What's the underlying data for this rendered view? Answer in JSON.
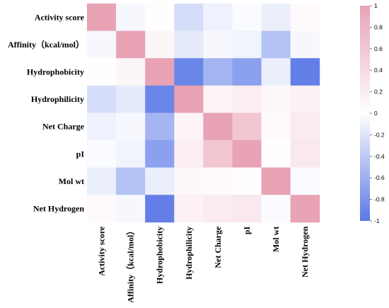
{
  "chart_data": {
    "type": "heatmap",
    "title": "",
    "labels": [
      "Activity score",
      "Affinity（kcal/mol）",
      "Hydrophobicity",
      "Hydrophilicity",
      "Net Charge",
      "pI",
      "Mol wt",
      "Net Hydrogen"
    ],
    "matrix": [
      [
        1.0,
        -0.05,
        0.02,
        -0.25,
        -0.1,
        -0.03,
        -0.12,
        0.05
      ],
      [
        -0.05,
        1.0,
        0.1,
        -0.15,
        -0.05,
        -0.08,
        -0.45,
        -0.05
      ],
      [
        0.02,
        0.1,
        1.0,
        -0.9,
        -0.55,
        -0.7,
        -0.12,
        -0.95
      ],
      [
        -0.25,
        -0.15,
        -0.9,
        1.0,
        0.12,
        0.18,
        0.08,
        0.15
      ],
      [
        -0.1,
        -0.05,
        -0.55,
        0.12,
        1.0,
        0.62,
        0.05,
        0.22
      ],
      [
        -0.03,
        -0.08,
        -0.7,
        0.18,
        0.62,
        1.0,
        0.02,
        0.25
      ],
      [
        -0.12,
        -0.45,
        -0.12,
        0.08,
        0.05,
        0.02,
        1.0,
        -0.03
      ],
      [
        0.05,
        -0.05,
        -0.95,
        0.15,
        0.22,
        0.25,
        -0.03,
        1.0
      ]
    ],
    "colorbar": {
      "min": -1,
      "max": 1,
      "ticks": [
        1,
        0.8,
        0.6,
        0.4,
        0.2,
        0,
        -0.2,
        -0.4,
        -0.6,
        -0.8,
        -1
      ],
      "tick_labels": [
        "1",
        "0.8",
        "0.6",
        "0.4",
        "0.2",
        "0",
        "-0.2",
        "-0.4",
        "-0.6",
        "-0.8",
        "-1"
      ],
      "high_color": "#e8a3b5",
      "mid_color": "#ffffff",
      "low_color": "#5b78e6"
    },
    "grid": false,
    "legend": "right"
  }
}
